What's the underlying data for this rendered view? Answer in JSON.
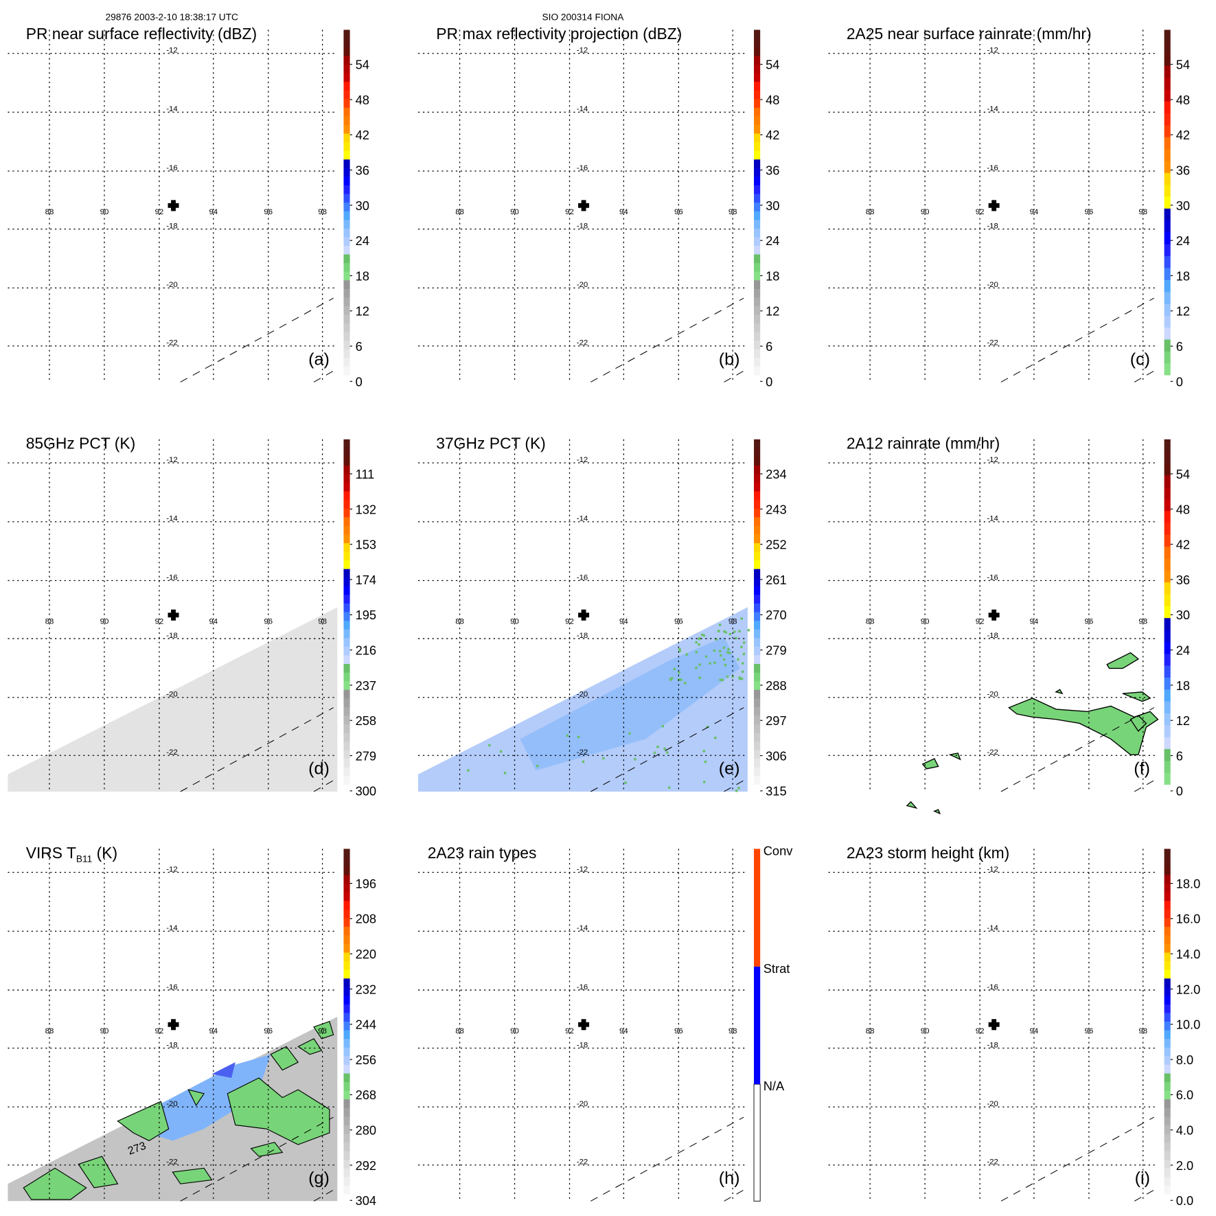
{
  "header": {
    "orbit_time": "29876 2003-2-10 18:38:17 UTC",
    "storm": "SIO 200314 FIONA"
  },
  "colors": {
    "full": [
      "#f6f6f6",
      "#eeeeee",
      "#e6e6e6",
      "#dddddd",
      "#d4d4d4",
      "#cbcbcb",
      "#c2c2c2",
      "#b8b8b8",
      "#adadad",
      "#a2a2a2",
      "#969696",
      "#86e086",
      "#78d478",
      "#68c068",
      "#ccd8ff",
      "#b0ccff",
      "#98c4ff",
      "#78b8ff",
      "#50a8ff",
      "#4080ff",
      "#3050ff",
      "#2020ff",
      "#0000ff",
      "#0000d8",
      "#0000c0",
      "#ffff00",
      "#ffe800",
      "#ffd800",
      "#ff9000",
      "#ff8000",
      "#ff7000",
      "#ff4000",
      "#ff2800",
      "#ff1800",
      "#c80000",
      "#b40000",
      "#a00000",
      "#601008",
      "#5a1410",
      "#541812"
    ],
    "nogray": [
      "#86e086",
      "#78d478",
      "#68c068",
      "#ccd8ff",
      "#b0ccff",
      "#98c4ff",
      "#78b8ff",
      "#50a8ff",
      "#4080ff",
      "#3050ff",
      "#2020ff",
      "#0000ff",
      "#0000d8",
      "#0000c0",
      "#ffff00",
      "#ffe800",
      "#ffd800",
      "#ff9000",
      "#ff8000",
      "#ff7000",
      "#ff4000",
      "#ff2800",
      "#ff1800",
      "#c80000",
      "#b40000",
      "#a00000",
      "#601008",
      "#5a1410",
      "#541812"
    ],
    "raintype": [
      "#ffffff",
      "#0000ff",
      "#ff4500"
    ]
  },
  "grid": {
    "lon_labels": [
      "88",
      "90",
      "92",
      "94",
      "96",
      "98"
    ],
    "lat_labels": [
      "-12",
      "-14",
      "-16",
      "-18",
      "-20",
      "-22"
    ]
  },
  "chart_data": [
    {
      "type": "heatmap",
      "title": "PR near surface reflectivity (dBZ)",
      "letter": "(a)",
      "scheme": "full",
      "colorbar_labels": [
        "54",
        "48",
        "42",
        "36",
        "30",
        "24",
        "18",
        "12",
        "6",
        "0"
      ],
      "swath": "none"
    },
    {
      "type": "heatmap",
      "title": "PR max reflectivity projection (dBZ)",
      "letter": "(b)",
      "scheme": "full",
      "colorbar_labels": [
        "54",
        "48",
        "42",
        "36",
        "30",
        "24",
        "18",
        "12",
        "6",
        "0"
      ],
      "swath": "none"
    },
    {
      "type": "heatmap",
      "title": "2A25 near surface rainrate (mm/hr)",
      "letter": "(c)",
      "scheme": "nogray",
      "colorbar_labels": [
        "54",
        "48",
        "42",
        "36",
        "30",
        "24",
        "18",
        "12",
        "6",
        "0"
      ],
      "swath": "none"
    },
    {
      "type": "heatmap",
      "title": "85GHz PCT (K)",
      "letter": "(d)",
      "scheme": "full",
      "colorbar_labels": [
        "111",
        "132",
        "153",
        "174",
        "195",
        "216",
        "237",
        "258",
        "279",
        "300"
      ],
      "swath": "gray"
    },
    {
      "type": "heatmap",
      "title": "37GHz PCT (K)",
      "letter": "(e)",
      "scheme": "full",
      "colorbar_labels": [
        "234",
        "243",
        "252",
        "261",
        "270",
        "279",
        "288",
        "297",
        "306",
        "315"
      ],
      "swath": "blue"
    },
    {
      "type": "heatmap",
      "title": "2A12 rainrate (mm/hr)",
      "letter": "(f)",
      "scheme": "nogray",
      "colorbar_labels": [
        "54",
        "48",
        "42",
        "36",
        "30",
        "24",
        "18",
        "12",
        "6",
        "0"
      ],
      "swath": "rainpatches"
    },
    {
      "type": "heatmap",
      "title": "VIRS T",
      "title_sub": "B11",
      "title_after": " (K)",
      "letter": "(g)",
      "scheme": "full",
      "colorbar_labels": [
        "196",
        "208",
        "220",
        "232",
        "244",
        "256",
        "268",
        "280",
        "292",
        "304"
      ],
      "swath": "ir",
      "contour_label": "273"
    },
    {
      "type": "heatmap",
      "title": "2A23 rain types",
      "letter": "(h)",
      "scheme": "raintype",
      "colorbar_labels": [
        "Conv",
        "Strat",
        "N/A"
      ],
      "swath": "none"
    },
    {
      "type": "heatmap",
      "title": "2A23 storm height (km)",
      "letter": "(i)",
      "scheme": "full",
      "colorbar_labels": [
        "18.0",
        "16.0",
        "14.0",
        "12.0",
        "10.0",
        "8.0",
        "6.0",
        "4.0",
        "2.0",
        "0.0"
      ],
      "swath": "none"
    }
  ]
}
